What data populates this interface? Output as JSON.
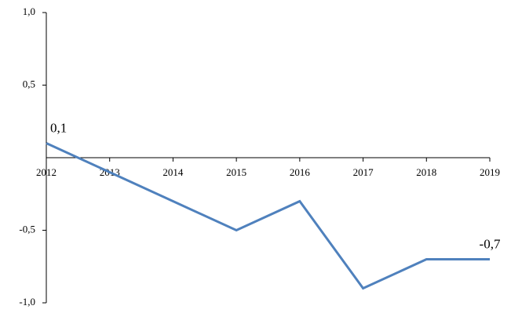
{
  "chart_data": {
    "type": "line",
    "categories": [
      "2012",
      "2013",
      "2014",
      "2015",
      "2016",
      "2017",
      "2018",
      "2019"
    ],
    "series": [
      {
        "color": "#4f81bd",
        "values": [
          0.1,
          -0.1,
          -0.3,
          -0.5,
          -0.3,
          -0.9,
          -0.7,
          -0.7
        ],
        "value_labels": [
          "0,1",
          null,
          null,
          null,
          null,
          null,
          null,
          "-0,7"
        ]
      }
    ],
    "ylim": [
      -1,
      1
    ],
    "yticks": [
      {
        "value": 1,
        "label": "1,0"
      },
      {
        "value": 0.5,
        "label": "0,5"
      },
      {
        "value": -0.5,
        "label": "-0,5"
      },
      {
        "value": -1,
        "label": "-1,0"
      }
    ],
    "grid": false
  }
}
